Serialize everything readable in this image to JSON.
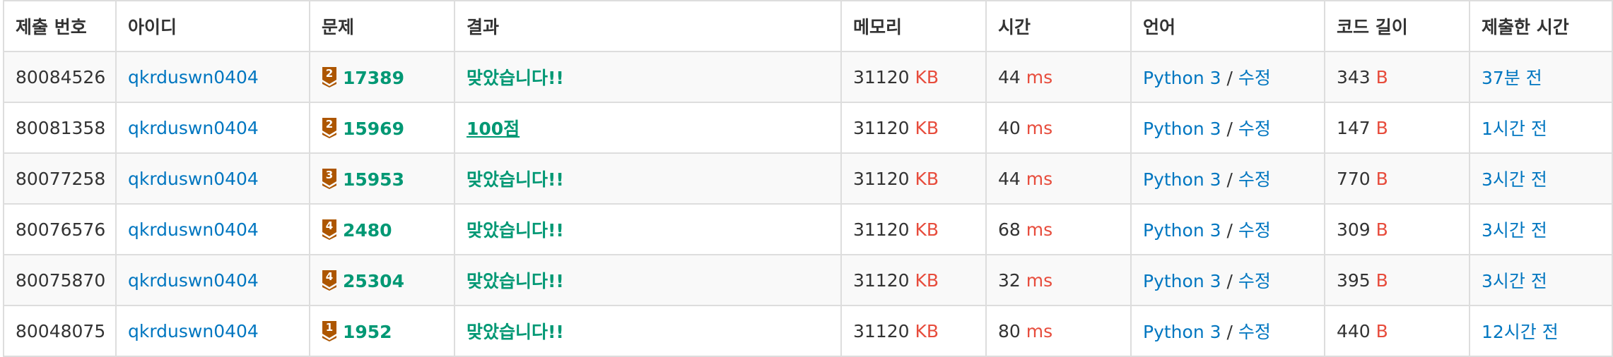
{
  "colors": {
    "link": "#0076c0",
    "unit": "#e74c3c",
    "accepted": "#009874",
    "bronze_badge": "#ad5600"
  },
  "header": {
    "submission_id": "제출 번호",
    "user_id": "아이디",
    "problem": "문제",
    "result": "결과",
    "memory": "메모리",
    "time": "시간",
    "language": "언어",
    "code_length": "코드 길이",
    "submitted_at": "제출한 시간"
  },
  "units": {
    "memory": "KB",
    "time": "ms",
    "code": "B",
    "separator": "/"
  },
  "rows": [
    {
      "submission_id": "80084526",
      "user": "qkrduswn0404",
      "tier_icon": "bronze-tier-icon",
      "tier_level": "2",
      "problem": "17389",
      "result": "맞았습니다!!",
      "memory": "31120",
      "time": "44",
      "language": "Python 3",
      "edit": "수정",
      "code_length": "343",
      "submitted_at": "37분 전"
    },
    {
      "submission_id": "80081358",
      "user": "qkrduswn0404",
      "tier_icon": "bronze-tier-icon",
      "tier_level": "2",
      "problem": "15969",
      "result": "100점",
      "memory": "31120",
      "time": "40",
      "language": "Python 3",
      "edit": "수정",
      "code_length": "147",
      "submitted_at": "1시간 전"
    },
    {
      "submission_id": "80077258",
      "user": "qkrduswn0404",
      "tier_icon": "bronze-tier-icon",
      "tier_level": "3",
      "problem": "15953",
      "result": "맞았습니다!!",
      "memory": "31120",
      "time": "44",
      "language": "Python 3",
      "edit": "수정",
      "code_length": "770",
      "submitted_at": "3시간 전"
    },
    {
      "submission_id": "80076576",
      "user": "qkrduswn0404",
      "tier_icon": "bronze-tier-icon",
      "tier_level": "4",
      "problem": "2480",
      "result": "맞았습니다!!",
      "memory": "31120",
      "time": "68",
      "language": "Python 3",
      "edit": "수정",
      "code_length": "309",
      "submitted_at": "3시간 전"
    },
    {
      "submission_id": "80075870",
      "user": "qkrduswn0404",
      "tier_icon": "bronze-tier-icon",
      "tier_level": "4",
      "problem": "25304",
      "result": "맞았습니다!!",
      "memory": "31120",
      "time": "32",
      "language": "Python 3",
      "edit": "수정",
      "code_length": "395",
      "submitted_at": "3시간 전"
    },
    {
      "submission_id": "80048075",
      "user": "qkrduswn0404",
      "tier_icon": "bronze-tier-icon",
      "tier_level": "1",
      "problem": "1952",
      "result": "맞았습니다!!",
      "memory": "31120",
      "time": "80",
      "language": "Python 3",
      "edit": "수정",
      "code_length": "440",
      "submitted_at": "12시간 전"
    }
  ]
}
